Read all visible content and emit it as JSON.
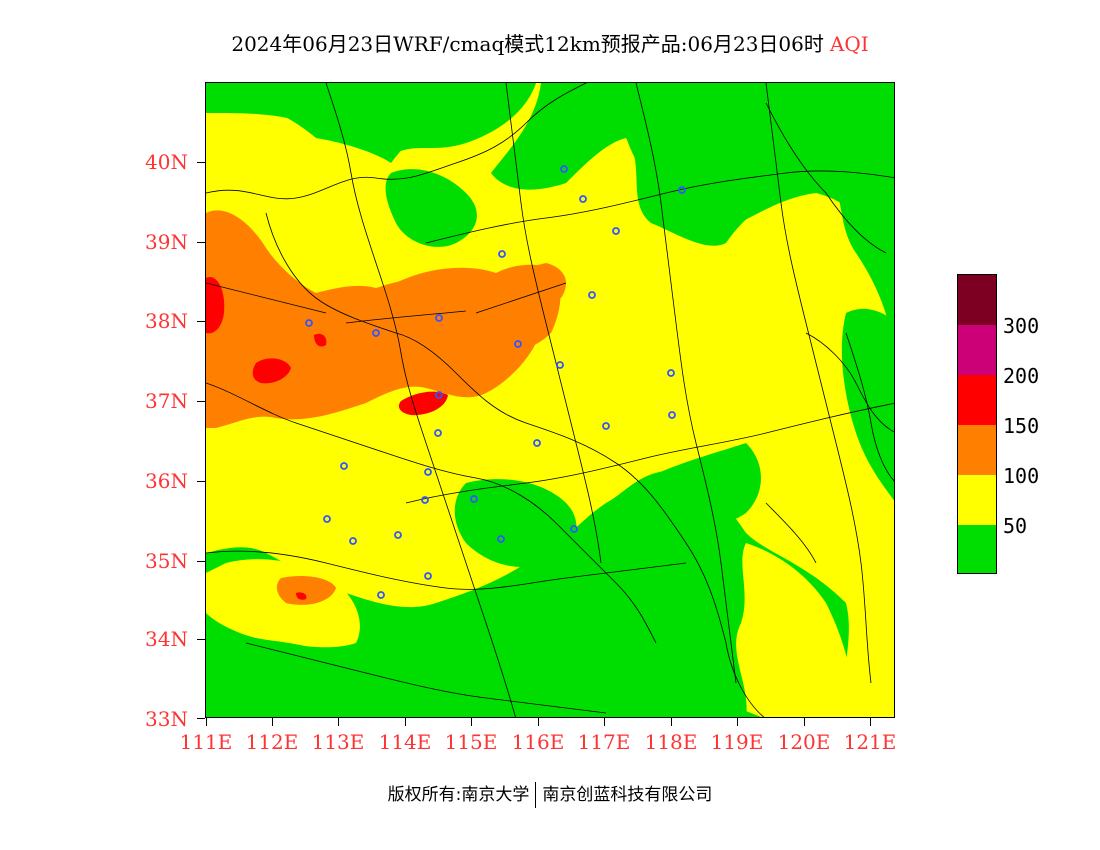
{
  "title": {
    "main": "2024年06月23日WRF/cmaq模式12km预报产品:06月23日06时",
    "variable": "AQI"
  },
  "map": {
    "lat_labels": [
      "40N",
      "39N",
      "38N",
      "37N",
      "36N",
      "35N",
      "34N",
      "33N"
    ],
    "lon_labels": [
      "111E",
      "112E",
      "113E",
      "114E",
      "115E",
      "116E",
      "117E",
      "118E",
      "119E",
      "120E",
      "121E"
    ],
    "colors": {
      "good": "#00dd00",
      "moderate": "#ffff00",
      "unhealthy_sensitive": "#ff8000",
      "unhealthy": "#ff0000",
      "very_unhealthy": "#cc0077",
      "hazardous": "#7d0023",
      "boundary": "#000000",
      "station_marker": "#3355ff"
    }
  },
  "colorbar": {
    "label_values": [
      "300",
      "200",
      "150",
      "100",
      "50"
    ],
    "segment_colors": [
      "#7d0023",
      "#cc0077",
      "#ff0000",
      "#ff8000",
      "#ffff00",
      "#00dd00"
    ]
  },
  "footer": {
    "left": "版权所有:南京大学",
    "right": "南京创蓝科技有限公司"
  }
}
